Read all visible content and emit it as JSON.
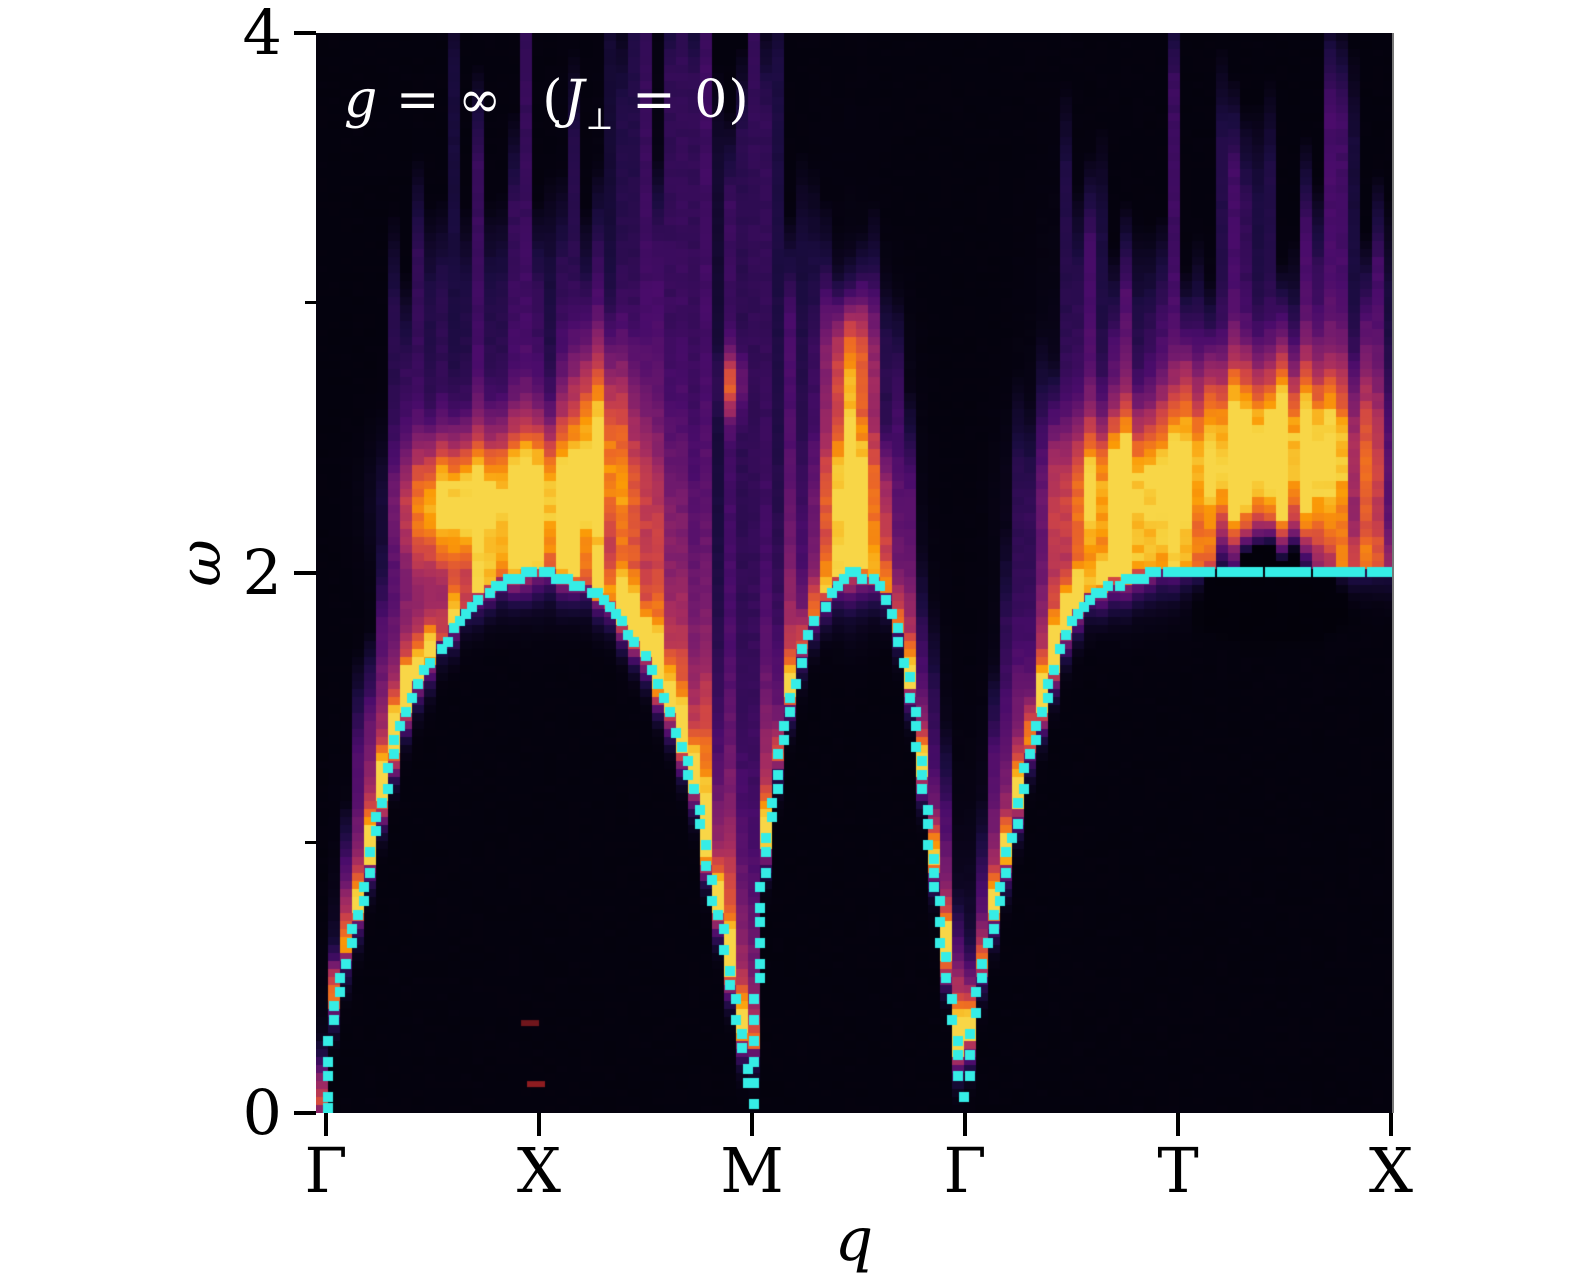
{
  "annotation": {
    "full_text": "g = ∞  (J⊥ = 0)",
    "g": "g",
    "eq1": " = ",
    "infinity": "∞",
    "open_paren": "(",
    "J": "J",
    "perp": "⊥",
    "close": " = 0)",
    "color": "#ffffff"
  },
  "axes": {
    "y": {
      "label": "ω",
      "range": [
        0,
        4
      ],
      "major_tick_values": [
        0,
        2,
        4
      ],
      "tick_labels": [
        "0",
        "2",
        "4"
      ],
      "minor_tick_values": [
        1,
        3
      ]
    },
    "x": {
      "label": "q",
      "tick_labels": [
        "Γ",
        "X",
        "M",
        "Γ",
        "T",
        "X"
      ],
      "tick_fracs": [
        0,
        1,
        2,
        3,
        4,
        5
      ]
    }
  },
  "chart_data": {
    "type": "heatmap",
    "description": "Dynamical spin structure factor S(q,ω) along high-symmetry path Γ-X-M-Γ-T-X with two-spinon continuum (inferno colormap) and cyan lower-edge dispersion markers; regime g = ∞ (J⊥ = 0).",
    "path_points": [
      {
        "label": "Γ",
        "f": 0
      },
      {
        "label": "X",
        "f": 1
      },
      {
        "label": "M",
        "f": 2
      },
      {
        "label": "Γ",
        "f": 3
      },
      {
        "label": "T",
        "f": 4
      },
      {
        "label": "X",
        "f": 5
      }
    ],
    "omega_range": [
      0,
      4
    ],
    "colormap": "inferno",
    "colormap_stops": [
      "#000004",
      "#1b0c41",
      "#4a0c6b",
      "#781c6d",
      "#a52c60",
      "#cf4446",
      "#ed6925",
      "#fb9a06",
      "#f7d13d",
      "#fcffa4"
    ],
    "curve_color": "#35ede6",
    "background_floor": 0.018,
    "haze_base": 0.13,
    "noise_seed": 11,
    "dispersion_curve": [
      [
        0.0,
        0.0
      ],
      [
        0.014,
        0.22
      ],
      [
        0.033,
        0.38
      ],
      [
        0.066,
        0.5
      ],
      [
        0.113,
        0.6
      ],
      [
        0.15,
        0.72
      ],
      [
        0.188,
        0.85
      ],
      [
        0.23,
        1.03
      ],
      [
        0.272,
        1.18
      ],
      [
        0.31,
        1.3
      ],
      [
        0.347,
        1.43
      ],
      [
        0.394,
        1.53
      ],
      [
        0.441,
        1.6
      ],
      [
        0.488,
        1.66
      ],
      [
        0.535,
        1.72
      ],
      [
        0.582,
        1.78
      ],
      [
        0.638,
        1.84
      ],
      [
        0.7,
        1.89
      ],
      [
        0.77,
        1.94
      ],
      [
        0.84,
        1.97
      ],
      [
        0.911,
        1.99
      ],
      [
        1.0,
        2.0
      ],
      [
        1.08,
        1.99
      ],
      [
        1.16,
        1.97
      ],
      [
        1.24,
        1.93
      ],
      [
        1.31,
        1.89
      ],
      [
        1.38,
        1.83
      ],
      [
        1.446,
        1.76
      ],
      [
        1.507,
        1.67
      ],
      [
        1.568,
        1.56
      ],
      [
        1.624,
        1.45
      ],
      [
        1.681,
        1.32
      ],
      [
        1.732,
        1.18
      ],
      [
        1.779,
        0.98
      ],
      [
        1.817,
        0.82
      ],
      [
        1.859,
        0.66
      ],
      [
        1.897,
        0.5
      ],
      [
        1.934,
        0.36
      ],
      [
        1.967,
        0.2
      ],
      [
        2.0,
        0.02
      ],
      [
        2.014,
        0.3
      ],
      [
        2.038,
        0.75
      ],
      [
        2.075,
        1.05
      ],
      [
        2.117,
        1.25
      ],
      [
        2.17,
        1.49
      ],
      [
        2.225,
        1.66
      ],
      [
        2.282,
        1.8
      ],
      [
        2.338,
        1.88
      ],
      [
        2.395,
        1.95
      ],
      [
        2.441,
        1.99
      ],
      [
        2.5,
        2.0
      ],
      [
        2.559,
        1.98
      ],
      [
        2.615,
        1.93
      ],
      [
        2.667,
        1.83
      ],
      [
        2.723,
        1.65
      ],
      [
        2.77,
        1.42
      ],
      [
        2.807,
        1.18
      ],
      [
        2.836,
        1.02
      ],
      [
        2.873,
        0.78
      ],
      [
        2.911,
        0.55
      ],
      [
        2.948,
        0.32
      ],
      [
        2.977,
        0.16
      ],
      [
        3.0,
        0.02
      ],
      [
        3.028,
        0.3
      ],
      [
        3.056,
        0.42
      ],
      [
        3.089,
        0.55
      ],
      [
        3.136,
        0.72
      ],
      [
        3.183,
        0.88
      ],
      [
        3.23,
        1.05
      ],
      [
        3.291,
        1.3
      ],
      [
        3.366,
        1.5
      ],
      [
        3.432,
        1.68
      ],
      [
        3.493,
        1.82
      ],
      [
        3.563,
        1.89
      ],
      [
        3.634,
        1.93
      ],
      [
        3.728,
        1.96
      ],
      [
        3.822,
        1.985
      ],
      [
        3.92,
        2.0
      ],
      [
        4.1,
        2.0
      ],
      [
        4.5,
        2.0
      ],
      [
        5.0,
        2.0
      ]
    ],
    "continuum_top": [
      [
        0,
        0.3
      ],
      [
        0.12,
        1.3
      ],
      [
        0.24,
        2.3
      ],
      [
        0.35,
        3.2
      ],
      [
        0.5,
        3.7
      ],
      [
        0.7,
        3.85
      ],
      [
        1.0,
        3.9
      ],
      [
        1.5,
        3.9
      ],
      [
        1.9,
        3.95
      ],
      [
        2.0,
        4.0
      ],
      [
        2.1,
        3.9
      ],
      [
        2.2,
        3.6
      ],
      [
        2.35,
        3.4
      ],
      [
        2.47,
        3.3
      ],
      [
        2.6,
        3.0
      ],
      [
        2.75,
        2.5
      ],
      [
        2.88,
        1.8
      ],
      [
        3.0,
        0.4
      ],
      [
        3.1,
        1.4
      ],
      [
        3.25,
        2.6
      ],
      [
        3.45,
        3.3
      ],
      [
        3.7,
        3.55
      ],
      [
        3.95,
        3.65
      ],
      [
        4.15,
        3.55
      ],
      [
        4.45,
        3.35
      ],
      [
        4.7,
        3.55
      ],
      [
        5.0,
        3.6
      ]
    ],
    "edge_intensity": [
      [
        0,
        0.2
      ],
      [
        0.07,
        0.55
      ],
      [
        0.12,
        0.62
      ],
      [
        0.2,
        0.5
      ],
      [
        0.3,
        0.82
      ],
      [
        0.36,
        0.88
      ],
      [
        0.42,
        0.55
      ],
      [
        0.5,
        0.42
      ],
      [
        0.6,
        0.36
      ],
      [
        0.7,
        0.38
      ],
      [
        0.85,
        0.32
      ],
      [
        1.0,
        0.3
      ],
      [
        1.15,
        0.33
      ],
      [
        1.3,
        0.45
      ],
      [
        1.42,
        0.72
      ],
      [
        1.5,
        0.85
      ],
      [
        1.6,
        0.92
      ],
      [
        1.7,
        1.0
      ],
      [
        1.8,
        1.0
      ],
      [
        1.9,
        0.92
      ],
      [
        1.97,
        0.55
      ],
      [
        2.0,
        0.35
      ],
      [
        2.05,
        0.62
      ],
      [
        2.12,
        0.6
      ],
      [
        2.2,
        0.45
      ],
      [
        2.35,
        0.32
      ],
      [
        2.5,
        0.3
      ],
      [
        2.65,
        0.32
      ],
      [
        2.78,
        0.48
      ],
      [
        2.85,
        0.62
      ],
      [
        2.9,
        0.72
      ],
      [
        2.95,
        0.6
      ],
      [
        3.0,
        0.4
      ],
      [
        3.05,
        0.55
      ],
      [
        3.12,
        0.52
      ],
      [
        3.2,
        0.56
      ],
      [
        3.3,
        0.62
      ],
      [
        3.38,
        0.72
      ],
      [
        3.45,
        0.6
      ],
      [
        3.55,
        0.46
      ],
      [
        3.7,
        0.36
      ],
      [
        3.85,
        0.3
      ],
      [
        4.0,
        0.3
      ],
      [
        4.2,
        0.22
      ],
      [
        4.5,
        0.16
      ],
      [
        4.7,
        0.2
      ],
      [
        5.0,
        0.28
      ]
    ],
    "edge_tail": [
      [
        0,
        0.15
      ],
      [
        0.5,
        0.3
      ],
      [
        1.0,
        0.35
      ],
      [
        1.4,
        0.45
      ],
      [
        1.7,
        0.55
      ],
      [
        2.0,
        0.4
      ],
      [
        2.5,
        0.35
      ],
      [
        3.0,
        0.25
      ],
      [
        3.3,
        0.4
      ],
      [
        3.6,
        0.3
      ],
      [
        4.0,
        0.25
      ],
      [
        5.0,
        0.2
      ]
    ],
    "clouds": [
      {
        "f": 1.03,
        "w": 2.28,
        "sf": 0.36,
        "sw": 0.24,
        "a": 0.82
      },
      {
        "f": 1.28,
        "w": 2.55,
        "sf": 0.14,
        "sw": 0.3,
        "a": 0.55
      },
      {
        "f": 0.58,
        "w": 2.25,
        "sf": 0.2,
        "sw": 0.22,
        "a": 0.7
      },
      {
        "f": 2.47,
        "w": 2.3,
        "sf": 0.13,
        "sw": 0.28,
        "a": 0.85
      },
      {
        "f": 2.47,
        "w": 2.8,
        "sf": 0.13,
        "sw": 0.22,
        "a": 0.45
      },
      {
        "f": 4.42,
        "w": 2.45,
        "sf": 0.42,
        "sw": 0.3,
        "a": 0.92
      },
      {
        "f": 3.75,
        "w": 2.3,
        "sf": 0.28,
        "sw": 0.25,
        "a": 0.75
      },
      {
        "f": 1.9,
        "w": 2.7,
        "sf": 0.05,
        "sw": 0.12,
        "a": 0.38
      }
    ],
    "suppressions": [
      {
        "f": 4.43,
        "w": 2.02,
        "sf": 0.26,
        "sw": 0.13,
        "a": 0.85
      }
    ],
    "stray_marks": [
      {
        "f": 0.986,
        "omega": 0.107,
        "color": "#8e1c20"
      },
      {
        "f": 0.958,
        "omega": 0.333,
        "color": "#70161c"
      }
    ]
  }
}
